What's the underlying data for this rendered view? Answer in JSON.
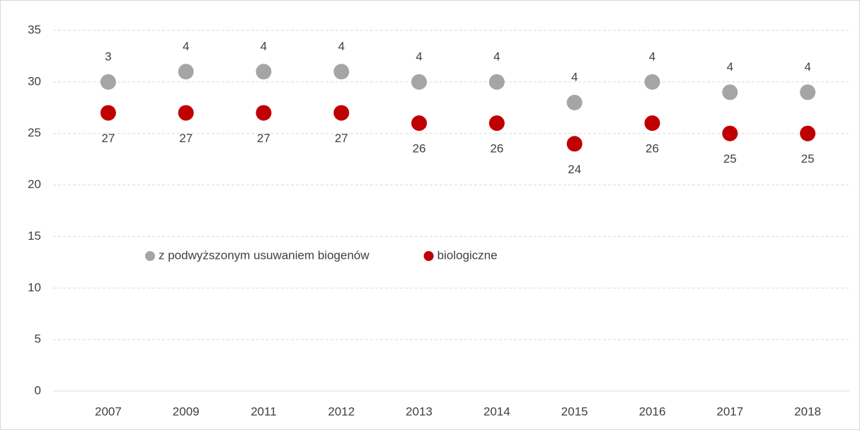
{
  "chart_data": {
    "type": "scatter",
    "stacked": true,
    "categories": [
      "2007",
      "2009",
      "2011",
      "2012",
      "2013",
      "2014",
      "2015",
      "2016",
      "2017",
      "2018"
    ],
    "series": [
      {
        "name": "biologiczne",
        "color": "#c00000",
        "values": [
          27,
          27,
          27,
          27,
          26,
          26,
          24,
          26,
          25,
          25
        ],
        "label_position": "below"
      },
      {
        "name": "z podwyższonym usuwaniem biogenów",
        "color": "#a5a5a5",
        "values": [
          3,
          4,
          4,
          4,
          4,
          4,
          4,
          4,
          4,
          4
        ],
        "label_position": "above"
      }
    ],
    "ylim": [
      0,
      35
    ],
    "yticks": [
      0,
      5,
      10,
      15,
      20,
      25,
      30,
      35
    ],
    "grid": true,
    "legend": "center"
  }
}
